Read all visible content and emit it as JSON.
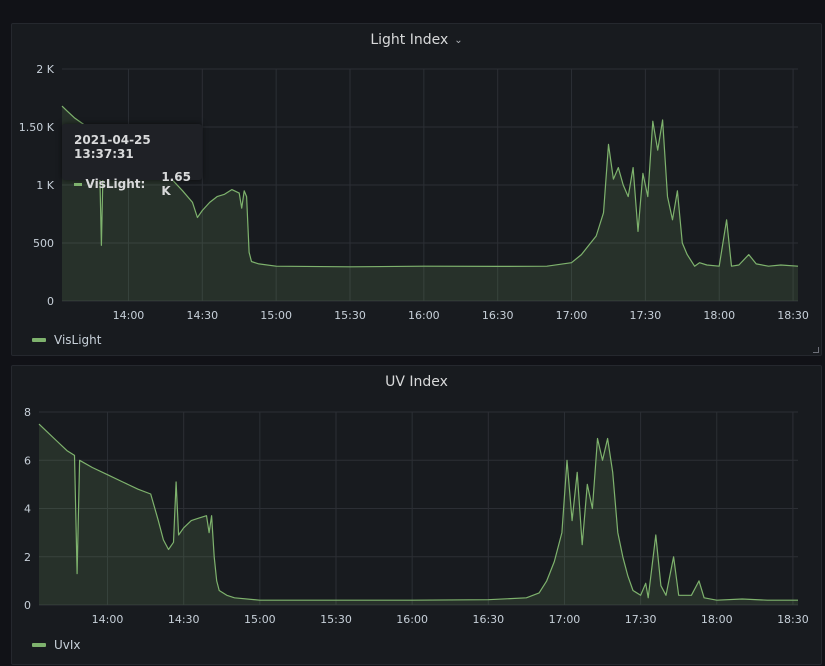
{
  "panels": [
    {
      "title": "Light Index",
      "legend": "VisLight",
      "has_menu": true,
      "tooltip": {
        "time": "2021-04-25 13:37:31",
        "series": "VisLight:",
        "value": "1.65 K"
      }
    },
    {
      "title": "UV Index",
      "legend": "UvIx",
      "has_menu": false
    }
  ],
  "chart_data": [
    {
      "type": "area",
      "title": "Light Index",
      "xlabel": "",
      "ylabel": "",
      "x_ticks": [
        "14:00",
        "14:30",
        "15:00",
        "15:30",
        "16:00",
        "16:30",
        "17:00",
        "17:30",
        "18:00",
        "18:30"
      ],
      "y_ticks": [
        "0",
        "500",
        "1 K",
        "1.50 K",
        "2 K"
      ],
      "ylim": [
        0,
        2000
      ],
      "xlim_minutes": [
        813,
        1112
      ],
      "grid": true,
      "legend_position": "bottom-left",
      "color": "#7eb26d",
      "series": [
        {
          "name": "VisLight",
          "points": [
            [
              813,
              1680
            ],
            [
              815,
              1640
            ],
            [
              818,
              1580
            ],
            [
              822,
              1520
            ],
            [
              826,
              1470
            ],
            [
              828,
              1450
            ],
            [
              829,
              480
            ],
            [
              830,
              1440
            ],
            [
              834,
              1400
            ],
            [
              838,
              1330
            ],
            [
              842,
              1280
            ],
            [
              846,
              1220
            ],
            [
              850,
              1160
            ],
            [
              854,
              1100
            ],
            [
              858,
              1040
            ],
            [
              862,
              950
            ],
            [
              866,
              850
            ],
            [
              868,
              720
            ],
            [
              870,
              780
            ],
            [
              873,
              850
            ],
            [
              876,
              900
            ],
            [
              879,
              920
            ],
            [
              882,
              960
            ],
            [
              885,
              930
            ],
            [
              886,
              800
            ],
            [
              887,
              950
            ],
            [
              888,
              900
            ],
            [
              889,
              420
            ],
            [
              890,
              340
            ],
            [
              893,
              320
            ],
            [
              900,
              300
            ],
            [
              930,
              295
            ],
            [
              960,
              300
            ],
            [
              990,
              298
            ],
            [
              1010,
              300
            ],
            [
              1020,
              330
            ],
            [
              1024,
              400
            ],
            [
              1027,
              480
            ],
            [
              1030,
              560
            ],
            [
              1033,
              760
            ],
            [
              1035,
              1350
            ],
            [
              1037,
              1050
            ],
            [
              1039,
              1150
            ],
            [
              1041,
              1000
            ],
            [
              1043,
              900
            ],
            [
              1045,
              1150
            ],
            [
              1047,
              600
            ],
            [
              1049,
              1100
            ],
            [
              1051,
              900
            ],
            [
              1053,
              1550
            ],
            [
              1055,
              1300
            ],
            [
              1057,
              1560
            ],
            [
              1059,
              900
            ],
            [
              1061,
              700
            ],
            [
              1063,
              950
            ],
            [
              1065,
              500
            ],
            [
              1067,
              400
            ],
            [
              1070,
              300
            ],
            [
              1072,
              330
            ],
            [
              1075,
              310
            ],
            [
              1080,
              300
            ],
            [
              1083,
              700
            ],
            [
              1085,
              300
            ],
            [
              1088,
              310
            ],
            [
              1092,
              400
            ],
            [
              1095,
              320
            ],
            [
              1100,
              300
            ],
            [
              1105,
              310
            ],
            [
              1112,
              300
            ]
          ]
        }
      ]
    },
    {
      "type": "area",
      "title": "UV Index",
      "xlabel": "",
      "ylabel": "",
      "x_ticks": [
        "14:00",
        "14:30",
        "15:00",
        "15:30",
        "16:00",
        "16:30",
        "17:00",
        "17:30",
        "18:00",
        "18:30"
      ],
      "y_ticks": [
        "0",
        "2",
        "4",
        "6",
        "8"
      ],
      "ylim": [
        0,
        8
      ],
      "xlim_minutes": [
        813,
        1112
      ],
      "grid": true,
      "legend_position": "bottom-left",
      "color": "#7eb26d",
      "series": [
        {
          "name": "UvIx",
          "points": [
            [
              813,
              7.5
            ],
            [
              816,
              7.2
            ],
            [
              820,
              6.8
            ],
            [
              824,
              6.4
            ],
            [
              827,
              6.2
            ],
            [
              828,
              1.3
            ],
            [
              829,
              6.0
            ],
            [
              834,
              5.7
            ],
            [
              840,
              5.4
            ],
            [
              846,
              5.1
            ],
            [
              852,
              4.8
            ],
            [
              857,
              4.6
            ],
            [
              860,
              3.5
            ],
            [
              862,
              2.7
            ],
            [
              864,
              2.3
            ],
            [
              866,
              2.6
            ],
            [
              867,
              5.1
            ],
            [
              868,
              2.9
            ],
            [
              870,
              3.2
            ],
            [
              873,
              3.5
            ],
            [
              876,
              3.6
            ],
            [
              879,
              3.7
            ],
            [
              880,
              3.0
            ],
            [
              881,
              3.7
            ],
            [
              882,
              2.0
            ],
            [
              883,
              1.0
            ],
            [
              884,
              0.6
            ],
            [
              887,
              0.4
            ],
            [
              890,
              0.3
            ],
            [
              900,
              0.2
            ],
            [
              930,
              0.2
            ],
            [
              960,
              0.2
            ],
            [
              990,
              0.22
            ],
            [
              1005,
              0.3
            ],
            [
              1010,
              0.5
            ],
            [
              1013,
              1.0
            ],
            [
              1016,
              1.8
            ],
            [
              1019,
              3.0
            ],
            [
              1021,
              6.0
            ],
            [
              1023,
              3.5
            ],
            [
              1025,
              5.5
            ],
            [
              1027,
              2.5
            ],
            [
              1029,
              5.0
            ],
            [
              1031,
              4.0
            ],
            [
              1033,
              6.9
            ],
            [
              1035,
              6.0
            ],
            [
              1037,
              6.9
            ],
            [
              1039,
              5.5
            ],
            [
              1041,
              3.0
            ],
            [
              1043,
              2.0
            ],
            [
              1045,
              1.2
            ],
            [
              1047,
              0.6
            ],
            [
              1050,
              0.4
            ],
            [
              1052,
              0.9
            ],
            [
              1053,
              0.3
            ],
            [
              1056,
              2.9
            ],
            [
              1058,
              0.8
            ],
            [
              1060,
              0.4
            ],
            [
              1063,
              2.0
            ],
            [
              1065,
              0.4
            ],
            [
              1070,
              0.4
            ],
            [
              1073,
              1.0
            ],
            [
              1075,
              0.3
            ],
            [
              1080,
              0.2
            ],
            [
              1090,
              0.25
            ],
            [
              1100,
              0.2
            ],
            [
              1112,
              0.2
            ]
          ]
        }
      ]
    }
  ]
}
